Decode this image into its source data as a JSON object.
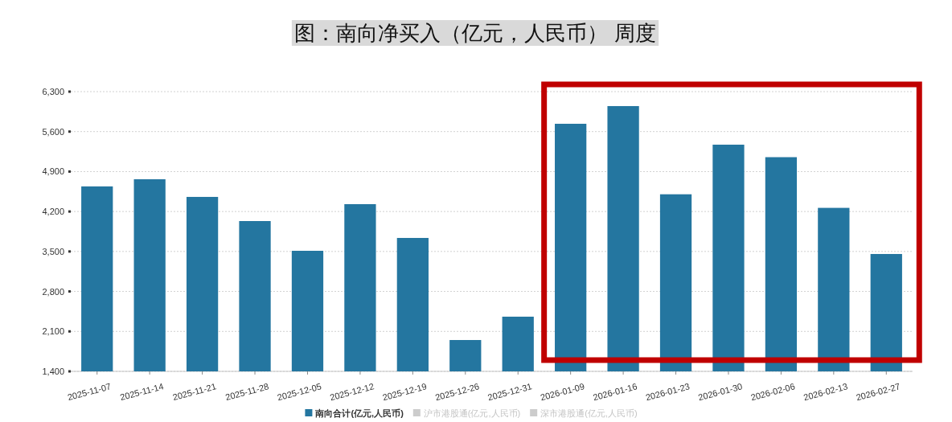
{
  "chart_data": {
    "type": "bar",
    "title": "图：南向净买入（亿元，人民币） 周度",
    "categories": [
      "2025-11-07",
      "2025-11-14",
      "2025-11-21",
      "2025-11-28",
      "2025-12-05",
      "2025-12-12",
      "2025-12-19",
      "2025-12-26",
      "2025-12-31",
      "2026-01-09",
      "2026-01-16",
      "2026-01-23",
      "2026-01-30",
      "2026-02-06",
      "2026-02-13",
      "2026-02-27"
    ],
    "series": [
      {
        "name": "南向合计(亿元,人民币)",
        "color": "#2476a0",
        "values": [
          4640,
          4765,
          4456,
          4033,
          3512,
          4329,
          3737,
          1949,
          2358,
          5737,
          6047,
          4502,
          5371,
          5152,
          4264,
          3456
        ]
      },
      {
        "name": "沪市港股通(亿元,人民币)",
        "color": "#cccccc",
        "values": [
          null,
          null,
          null,
          null,
          null,
          null,
          null,
          null,
          null,
          null,
          null,
          null,
          null,
          null,
          null,
          null
        ]
      },
      {
        "name": "深市港股通(亿元,人民币)",
        "color": "#cccccc",
        "values": [
          null,
          null,
          null,
          null,
          null,
          null,
          null,
          null,
          null,
          null,
          null,
          null,
          null,
          null,
          null,
          null
        ]
      }
    ],
    "ylim": [
      1400,
      6300
    ],
    "yticks": [
      {
        "value": 1400,
        "label": "1,400"
      },
      {
        "value": 2100,
        "label": "2,100"
      },
      {
        "value": 2800,
        "label": "2,800"
      },
      {
        "value": 3500,
        "label": "3,500"
      },
      {
        "value": 4200,
        "label": "4,200"
      },
      {
        "value": 4900,
        "label": "4,900"
      },
      {
        "value": 5600,
        "label": "5,600"
      },
      {
        "value": 6300,
        "label": "6,300"
      }
    ],
    "grid": "y",
    "legend": "bottom"
  }
}
